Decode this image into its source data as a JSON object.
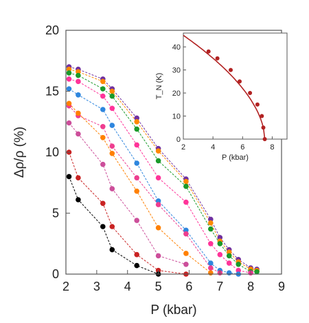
{
  "chart_data": [
    {
      "type": "scatter",
      "xlabel": "P (kbar)",
      "ylabel": "Δρ/ρ (%)",
      "xlim": [
        2,
        9
      ],
      "ylim": [
        0,
        20
      ],
      "xticks": [
        "2",
        "3",
        "4",
        "5",
        "6",
        "7",
        "8",
        "9"
      ],
      "yticks": [
        "0",
        "5",
        "10",
        "15",
        "20"
      ],
      "grid": false,
      "series": [
        {
          "color": "#7030a0",
          "x": [
            2.1,
            2.4,
            3.2,
            3.5,
            4.3,
            5.0,
            5.9,
            6.7,
            7.0,
            7.3,
            7.6,
            8.0,
            8.2
          ],
          "y": [
            17.0,
            16.8,
            16.0,
            15.2,
            12.8,
            10.3,
            7.8,
            4.5,
            3.0,
            2.0,
            1.2,
            0.5,
            0.4
          ]
        },
        {
          "color": "#ff8a00",
          "x": [
            2.1,
            2.4,
            3.2,
            3.5,
            4.3,
            5.0,
            5.9,
            6.7,
            7.0,
            7.3,
            7.6,
            8.0,
            8.2
          ],
          "y": [
            16.8,
            16.6,
            15.8,
            15.0,
            12.5,
            10.1,
            7.6,
            4.2,
            2.7,
            1.8,
            1.0,
            0.4,
            0.3
          ]
        },
        {
          "color": "#1a9a2a",
          "x": [
            2.1,
            2.4,
            3.2,
            3.5,
            4.3,
            5.0,
            5.9,
            6.7,
            7.0,
            7.3,
            7.6,
            8.0,
            8.2
          ],
          "y": [
            16.5,
            16.3,
            15.2,
            14.6,
            11.9,
            9.3,
            7.2,
            3.7,
            2.5,
            1.5,
            0.8,
            0.2,
            0.2
          ]
        },
        {
          "color": "#ff3399",
          "x": [
            2.1,
            2.4,
            3.2,
            3.5,
            4.3,
            5.0,
            5.9,
            6.7,
            7.0,
            7.3,
            7.6,
            8.0
          ],
          "y": [
            16.0,
            15.8,
            14.6,
            13.6,
            10.6,
            7.9,
            5.9,
            2.5,
            1.6,
            0.9,
            0.3,
            0.1
          ]
        },
        {
          "color": "#2e86de",
          "x": [
            2.1,
            2.4,
            3.2,
            3.5,
            4.3,
            5.0,
            5.9,
            6.7,
            7.0,
            7.3,
            7.6
          ],
          "y": [
            15.2,
            14.7,
            13.5,
            12.2,
            9.1,
            6.0,
            3.6,
            0.9,
            0.3,
            0.1,
            0.0
          ]
        },
        {
          "color": "#ee3d8f",
          "x": [
            2.1,
            2.4,
            3.2,
            3.5,
            4.3,
            5.0,
            5.9,
            6.7,
            7.0
          ],
          "y": [
            13.8,
            13.0,
            12.1,
            10.5,
            7.9,
            5.7,
            3.3,
            0.5,
            0.1
          ]
        },
        {
          "color": "#ff8000",
          "x": [
            2.1,
            2.4,
            3.2,
            3.5,
            4.3,
            5.0,
            5.9,
            6.7
          ],
          "y": [
            14.0,
            13.2,
            11.2,
            9.9,
            6.8,
            3.8,
            1.7,
            0.1
          ]
        },
        {
          "color": "#cc4e9a",
          "x": [
            2.1,
            2.4,
            3.2,
            3.5,
            4.3,
            5.0,
            5.9
          ],
          "y": [
            12.4,
            11.5,
            9.0,
            7.0,
            4.4,
            1.5,
            0.8
          ]
        },
        {
          "color": "#c92222",
          "x": [
            2.1,
            2.4,
            3.2,
            3.5,
            4.3,
            5.0,
            5.9
          ],
          "y": [
            10.0,
            7.9,
            5.8,
            3.9,
            1.6,
            0.3,
            0.0
          ]
        },
        {
          "color": "#000000",
          "x": [
            2.1,
            2.4,
            3.2,
            3.5,
            4.3,
            5.0
          ],
          "y": [
            8.0,
            6.1,
            3.9,
            2.0,
            0.7,
            0.0
          ]
        }
      ]
    },
    {
      "type": "line",
      "xlabel": "P (kbar)",
      "ylabel": "T_N (K)",
      "xlim": [
        2,
        9
      ],
      "ylim": [
        0,
        46
      ],
      "xticks": [
        "2",
        "4",
        "6",
        "8"
      ],
      "yticks": [
        "0",
        "10",
        "20",
        "30",
        "40"
      ],
      "series": [
        {
          "color": "#b22222",
          "x": [
            3.7,
            4.3,
            5.2,
            5.8,
            6.5,
            7.0,
            7.3,
            7.4,
            7.5
          ],
          "y": [
            38,
            35,
            30,
            25,
            20,
            15,
            10,
            5,
            0
          ]
        }
      ]
    }
  ]
}
